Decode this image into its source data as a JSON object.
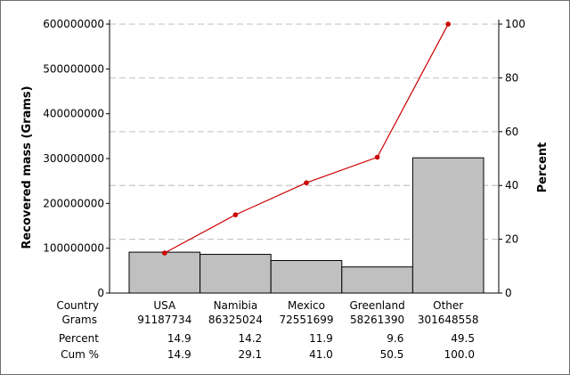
{
  "chart_data": {
    "type": "pareto",
    "ylabel_left": "Recovered mass (Grams)",
    "ylabel_right": "Percent",
    "left_ticks": [
      "0",
      "100000000",
      "200000000",
      "300000000",
      "400000000",
      "500000000",
      "600000000"
    ],
    "left_tick_values": [
      0,
      100000000,
      200000000,
      300000000,
      400000000,
      500000000,
      600000000
    ],
    "right_ticks": [
      "0",
      "20",
      "40",
      "60",
      "80",
      "100"
    ],
    "right_tick_values": [
      0,
      20,
      40,
      60,
      80,
      100
    ],
    "ylim_left": [
      0,
      610000000
    ],
    "ylim_right": [
      0,
      101.67
    ],
    "categories": [
      "USA",
      "Namibia",
      "Mexico",
      "Greenland",
      "Other"
    ],
    "values": [
      91187734,
      86325024,
      72551699,
      58261390,
      301648558
    ],
    "cumulative_percent": [
      14.9,
      29.1,
      41.0,
      50.5,
      100.0
    ],
    "bar_color": "#c0c0c0",
    "line_color": "#cc0000",
    "grid": "dashed horizontal at right-axis ticks",
    "table": {
      "row_labels": [
        "Country",
        "Grams",
        "Percent",
        "Cum %"
      ],
      "country": [
        "USA",
        "Namibia",
        "Mexico",
        "Greenland",
        "Other"
      ],
      "grams": [
        "91187734",
        "86325024",
        "72551699",
        "58261390",
        "301648558"
      ],
      "percent": [
        "14.9",
        "14.2",
        "11.9",
        "9.6",
        "49.5"
      ],
      "cum": [
        "14.9",
        "29.1",
        "41.0",
        "50.5",
        "100.0"
      ]
    }
  }
}
